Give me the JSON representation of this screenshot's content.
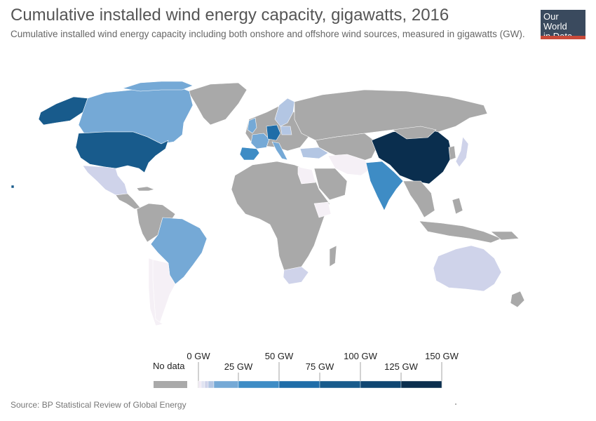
{
  "header": {
    "title": "Cumulative installed wind energy capacity, gigawatts, 2016",
    "subtitle": "Cumulative installed wind energy capacity including both onshore and offshore wind sources, measured in gigawatts (GW)."
  },
  "logo": {
    "line1": "Our World",
    "line2": "in Data"
  },
  "legend": {
    "no_data_label": "No data",
    "ticks": [
      "0 GW",
      "25 GW",
      "50 GW",
      "75 GW",
      "100 GW",
      "125 GW",
      "150 GW"
    ],
    "colors": [
      "#f0e9f4",
      "#e0e3f2",
      "#cfd3ea",
      "#b3c6e3",
      "#75a9d6",
      "#3e8cc5",
      "#1f6da8",
      "#185b8c",
      "#0f4672",
      "#0a2e4e"
    ],
    "no_data_color": "#a9a9a9"
  },
  "map_data": {
    "year": "2016",
    "indicator": "Cumulative installed wind energy capacity",
    "unit": "GW",
    "countries": [
      {
        "name": "China",
        "fill": "#0a2e4e"
      },
      {
        "name": "United States",
        "fill": "#185b8c"
      },
      {
        "name": "Germany",
        "fill": "#1f6da8"
      },
      {
        "name": "India",
        "fill": "#3e8cc5"
      },
      {
        "name": "Spain",
        "fill": "#3e8cc5"
      },
      {
        "name": "United Kingdom",
        "fill": "#75a9d6"
      },
      {
        "name": "France",
        "fill": "#75a9d6"
      },
      {
        "name": "Canada",
        "fill": "#75a9d6"
      },
      {
        "name": "Brazil",
        "fill": "#75a9d6"
      },
      {
        "name": "Italy",
        "fill": "#75a9d6"
      },
      {
        "name": "Sweden",
        "fill": "#b3c6e3"
      },
      {
        "name": "Turkey",
        "fill": "#b3c6e3"
      },
      {
        "name": "Poland",
        "fill": "#b3c6e3"
      },
      {
        "name": "Denmark",
        "fill": "#b3c6e3"
      },
      {
        "name": "Portugal",
        "fill": "#75a9d6"
      },
      {
        "name": "Australia",
        "fill": "#cfd3ea"
      },
      {
        "name": "Mexico",
        "fill": "#cfd3ea"
      },
      {
        "name": "Japan",
        "fill": "#cfd3ea"
      },
      {
        "name": "South Africa",
        "fill": "#cfd3ea"
      },
      {
        "name": "Netherlands",
        "fill": "#b3c6e3"
      },
      {
        "name": "Argentina",
        "fill": "#f5f0f6"
      },
      {
        "name": "Chile",
        "fill": "#f5f0f6"
      },
      {
        "name": "Iran",
        "fill": "#f5f0f6"
      },
      {
        "name": "Pakistan",
        "fill": "#f5f0f6"
      },
      {
        "name": "Egypt",
        "fill": "#f5f0f6"
      },
      {
        "name": "Ethiopia",
        "fill": "#f5f0f6"
      },
      {
        "name": "Russia",
        "fill": "#a9a9a9"
      }
    ]
  },
  "footer": {
    "source": "Source: BP Statistical Review of Global Energy"
  }
}
